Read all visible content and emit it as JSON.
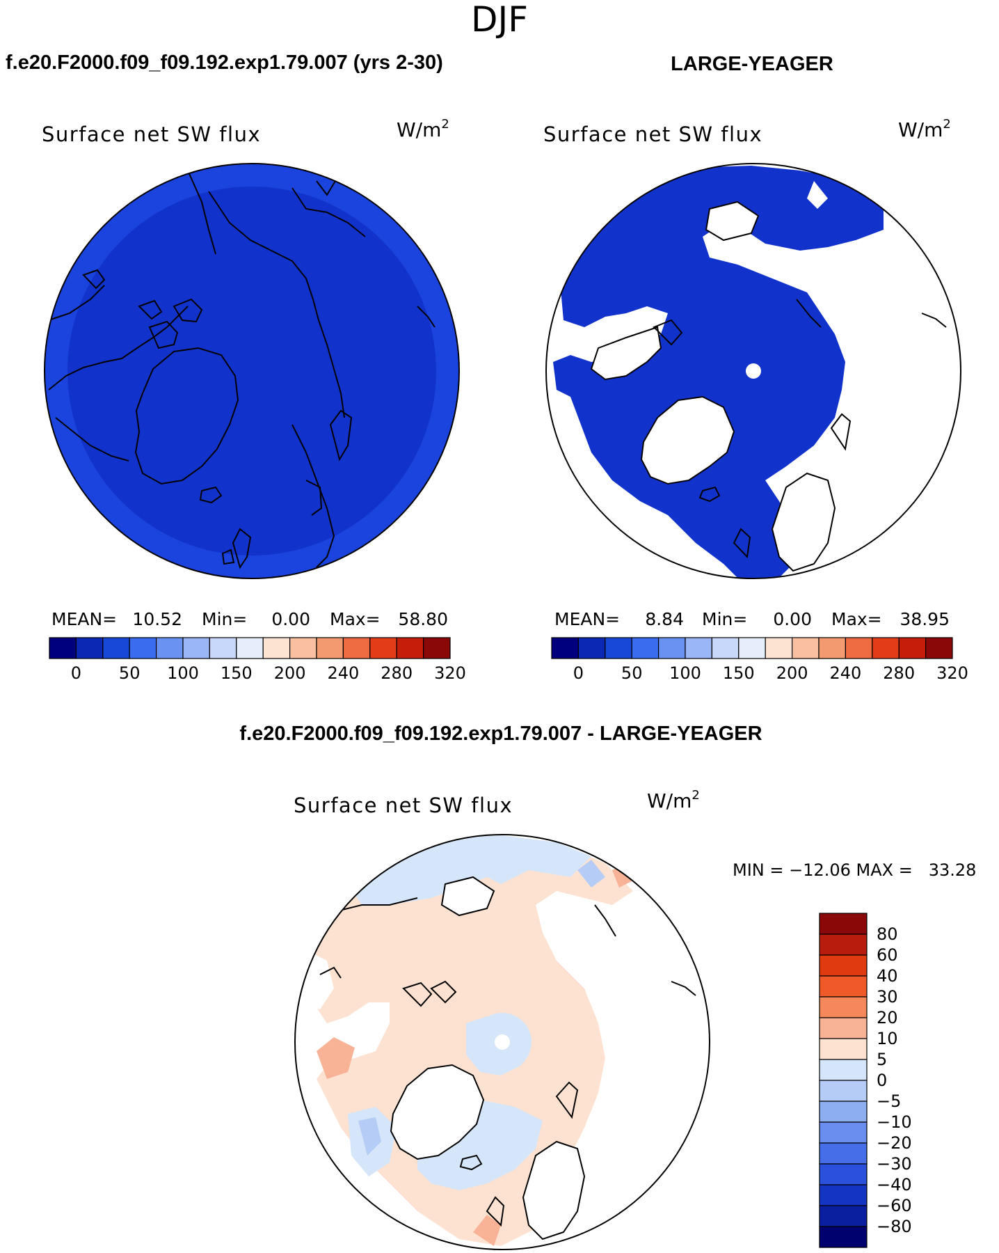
{
  "page_title": "DJF",
  "top_panels": [
    {
      "heading": "f.e20.F2000.f09_f09.192.exp1.79.007 (yrs 2-30)",
      "map_title": "Surface net SW flux",
      "units_base": "W/m",
      "units_exp": "2",
      "stats": {
        "mean_label": "MEAN=",
        "mean": "10.52",
        "min_label": "Min=",
        "min": "0.00",
        "max_label": "Max=",
        "max": "58.80"
      },
      "field_color": "#1133cc",
      "ocean_color": "#1a44dd",
      "land_masked": false
    },
    {
      "heading": "LARGE-YEAGER",
      "map_title": "Surface net SW flux",
      "units_base": "W/m",
      "units_exp": "2",
      "stats": {
        "mean_label": "MEAN=",
        "mean": "8.84",
        "min_label": "Min=",
        "min": "0.00",
        "max_label": "Max=",
        "max": "38.95"
      },
      "field_color": "#1133cc",
      "ocean_color": "#1a44dd",
      "land_masked": true
    }
  ],
  "abs_colorbar": {
    "colors": [
      "#00007f",
      "#0a28b4",
      "#1848d8",
      "#3a6cf0",
      "#6a92f2",
      "#9ab6f6",
      "#c8d8fa",
      "#e6eefc",
      "#fde4d2",
      "#f8c0a0",
      "#f49a70",
      "#ee6a40",
      "#e23c18",
      "#c41e0a",
      "#8a0808"
    ],
    "tick_labels": [
      "0",
      "50",
      "100",
      "150",
      "200",
      "240",
      "280",
      "320"
    ]
  },
  "diff_panel": {
    "heading": "f.e20.F2000.f09_f09.192.exp1.79.007 - LARGE-YEAGER",
    "map_title": "Surface net SW flux",
    "units_base": "W/m",
    "units_exp": "2",
    "minmax_text": "MIN = −12.06 MAX =   33.28"
  },
  "diff_colorbar": {
    "colors": [
      "#8a0808",
      "#b81c0c",
      "#e03a10",
      "#f05a28",
      "#f4885a",
      "#f8b296",
      "#fde2d2",
      "#d6e6fa",
      "#b4ccf6",
      "#8eaef2",
      "#6a8ef0",
      "#466ee8",
      "#2a50dc",
      "#1434c4",
      "#0a1ea0",
      "#00006e"
    ],
    "tick_labels": [
      "80",
      "60",
      "40",
      "30",
      "20",
      "10",
      "5",
      "0",
      "−5",
      "−10",
      "−20",
      "−30",
      "−40",
      "−60",
      "−80"
    ]
  }
}
